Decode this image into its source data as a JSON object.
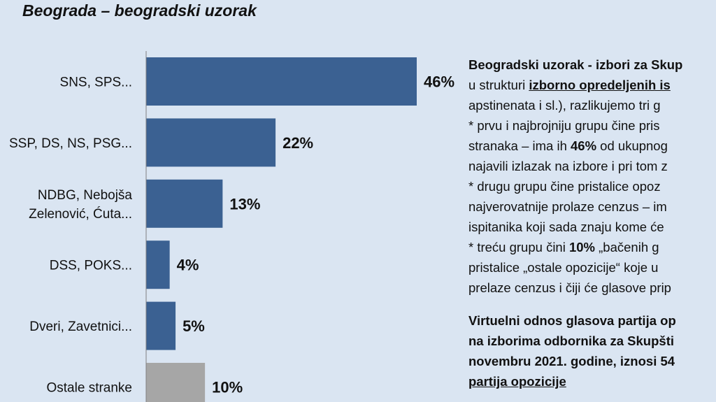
{
  "title": "Beograda – beogradski uzorak",
  "chart_data": {
    "type": "bar",
    "orientation": "horizontal",
    "title": "Beograda – beogradski uzorak",
    "categories": [
      "SNS, SPS...",
      "SSP, DS, NS, PSG...",
      "NDBG, Nebojša Zelenović, Ćuta...",
      "DSS, POKS...",
      "Dveri, Zavetnici...",
      "Ostale stranke"
    ],
    "category_lines": [
      [
        "SNS, SPS..."
      ],
      [
        "SSP, DS, NS, PSG..."
      ],
      [
        "NDBG, Nebojša",
        "Zelenović, Ćuta..."
      ],
      [
        "DSS, POKS..."
      ],
      [
        "Dveri, Zavetnici..."
      ],
      [
        "Ostale stranke"
      ]
    ],
    "values": [
      46,
      22,
      13,
      4,
      5,
      10
    ],
    "data_labels": [
      "46%",
      "22%",
      "13%",
      "4%",
      "5%",
      "10%"
    ],
    "unit": "%",
    "colors": [
      "#3b6192",
      "#3b6192",
      "#3b6192",
      "#3b6192",
      "#3b6192",
      "#a6a6a6"
    ],
    "xlim": [
      0,
      50
    ],
    "grid": false
  },
  "text": {
    "para1": [
      [
        {
          "t": "Beogradski uzorak - izbori za Skup",
          "s": "b"
        }
      ],
      [
        {
          "t": "u strukturi "
        },
        {
          "t": "izborno opredeljenih is",
          "s": "u"
        }
      ],
      [
        {
          "t": "apstinenata i sl.), razlikujemo tri g"
        }
      ],
      [
        {
          "t": "* prvu i najbrojniju grupu čine pris"
        }
      ],
      [
        {
          "t": "stranaka – ima ih "
        },
        {
          "t": "46%",
          "s": "b"
        },
        {
          "t": " od ukupnog"
        }
      ],
      [
        {
          "t": "najavili izlazak na izbore i pri tom z"
        }
      ],
      [
        {
          "t": "* drugu grupu čine pristalice opoz"
        }
      ],
      [
        {
          "t": "najverovatnije prolaze cenzus – im"
        }
      ],
      [
        {
          "t": "ispitanika koji sada znaju kome će"
        }
      ],
      [
        {
          "t": "* treću grupu čini "
        },
        {
          "t": "10%",
          "s": "b"
        },
        {
          "t": " „bačenih g"
        }
      ],
      [
        {
          "t": "pristalice „ostale opozicije“ koje u"
        }
      ],
      [
        {
          "t": "prelaze cenzus i čiji će glasove prip"
        }
      ]
    ],
    "para2": [
      [
        {
          "t": "Virtuelni odnos glasova partija op",
          "s": "b"
        }
      ],
      [
        {
          "t": "na izborima odbornika za Skupšti",
          "s": "b"
        }
      ],
      [
        {
          "t": "novembru 2021. godine, iznosi 54",
          "s": "b"
        }
      ],
      [
        {
          "t": "partija opozicije",
          "s": "u"
        }
      ]
    ]
  }
}
